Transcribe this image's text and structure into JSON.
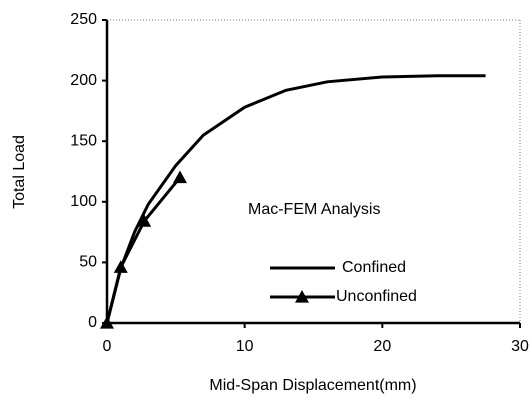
{
  "chart_data": {
    "type": "line",
    "annotation": "Mac-FEM Analysis",
    "xlabel": "Mid-Span Displacement(mm)",
    "ylabel": "Total Load",
    "xlim": [
      0,
      30
    ],
    "xticks": [
      0,
      10,
      20,
      30
    ],
    "ylim": [
      0,
      250
    ],
    "yticks": [
      0,
      50,
      100,
      150,
      200,
      250
    ],
    "legend": "lower right",
    "series": [
      {
        "name": "Confined",
        "color": "#000000",
        "marker": null,
        "x": [
          0,
          1,
          2,
          3,
          5,
          7,
          10,
          13,
          16,
          20,
          24,
          27.5
        ],
        "values": [
          0,
          45,
          75,
          98,
          130,
          155,
          178,
          192,
          199,
          203,
          204,
          204
        ]
      },
      {
        "name": "Unconfined",
        "color": "#000000",
        "marker": "triangle",
        "x": [
          0,
          1,
          2.7,
          5.3
        ],
        "values": [
          0,
          46,
          84,
          120
        ]
      }
    ]
  }
}
